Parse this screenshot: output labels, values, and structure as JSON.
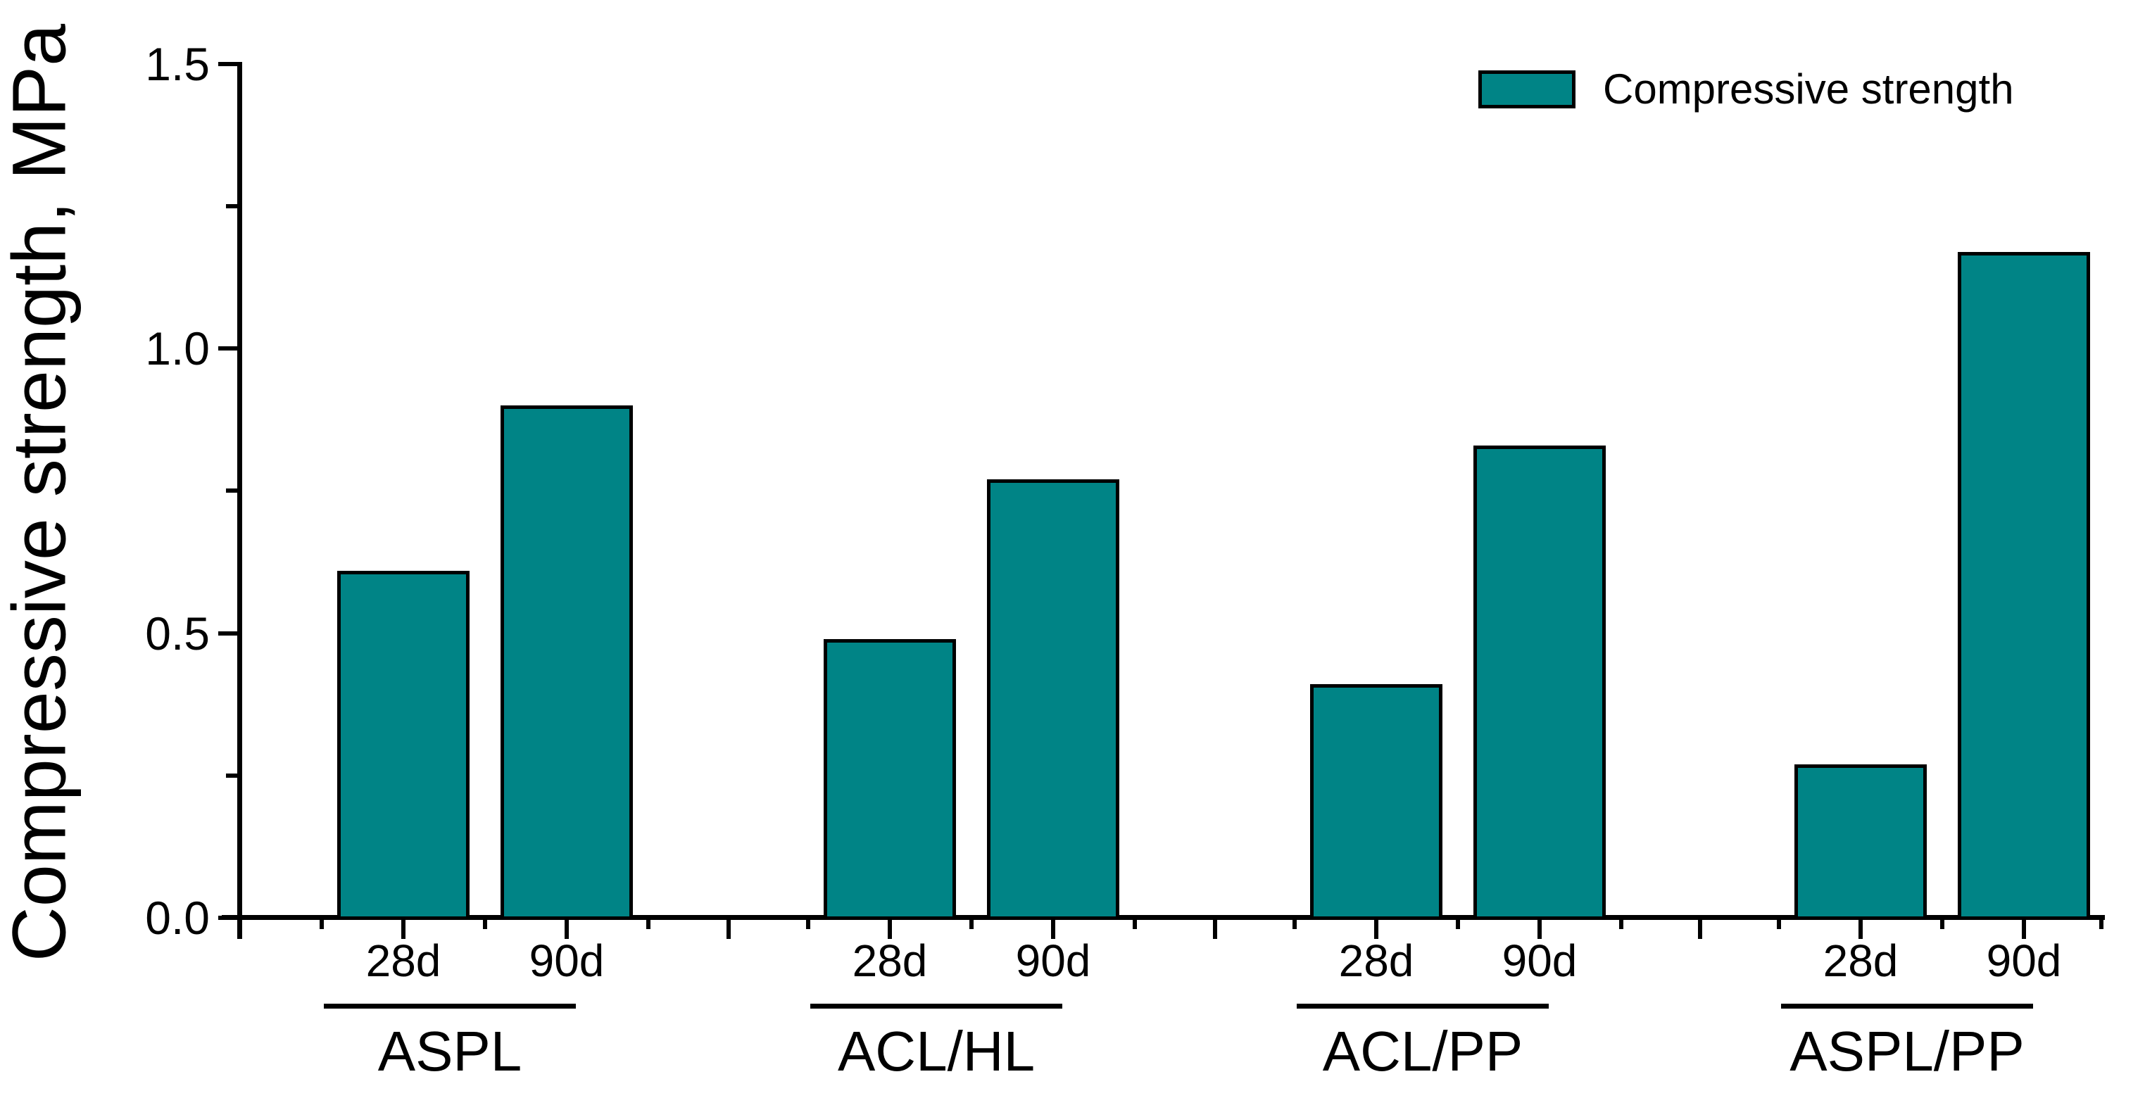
{
  "chart_data": {
    "type": "bar",
    "title": "",
    "ylabel": "Compressive strength, MPa",
    "xlabel": "",
    "ylim": [
      0,
      1.5
    ],
    "grid": false,
    "bar_color": "#008486",
    "bar_border_color": "#000000",
    "legend": {
      "position": "top-right",
      "entries": [
        {
          "label": "Compressive strength",
          "color": "#008486"
        }
      ]
    },
    "yaxis": {
      "ticks": [
        {
          "value": 0.0,
          "label": "0.0"
        },
        {
          "value": 0.5,
          "label": "0.5"
        },
        {
          "value": 1.0,
          "label": "1.0"
        },
        {
          "value": 1.5,
          "label": "1.5"
        }
      ],
      "minor_tick_values": [
        0.25,
        0.75,
        1.25
      ]
    },
    "groups": [
      {
        "label": "ASPL",
        "bars": [
          {
            "category": "28d",
            "value": 0.61
          },
          {
            "category": "90d",
            "value": 0.9
          }
        ]
      },
      {
        "label": "ACL/HL",
        "bars": [
          {
            "category": "28d",
            "value": 0.49
          },
          {
            "category": "90d",
            "value": 0.77
          }
        ]
      },
      {
        "label": "ACL/PP",
        "bars": [
          {
            "category": "28d",
            "value": 0.41
          },
          {
            "category": "90d",
            "value": 0.83
          }
        ]
      },
      {
        "label": "ASPL/PP",
        "bars": [
          {
            "category": "28d",
            "value": 0.27
          },
          {
            "category": "90d",
            "value": 1.17
          }
        ]
      }
    ]
  }
}
